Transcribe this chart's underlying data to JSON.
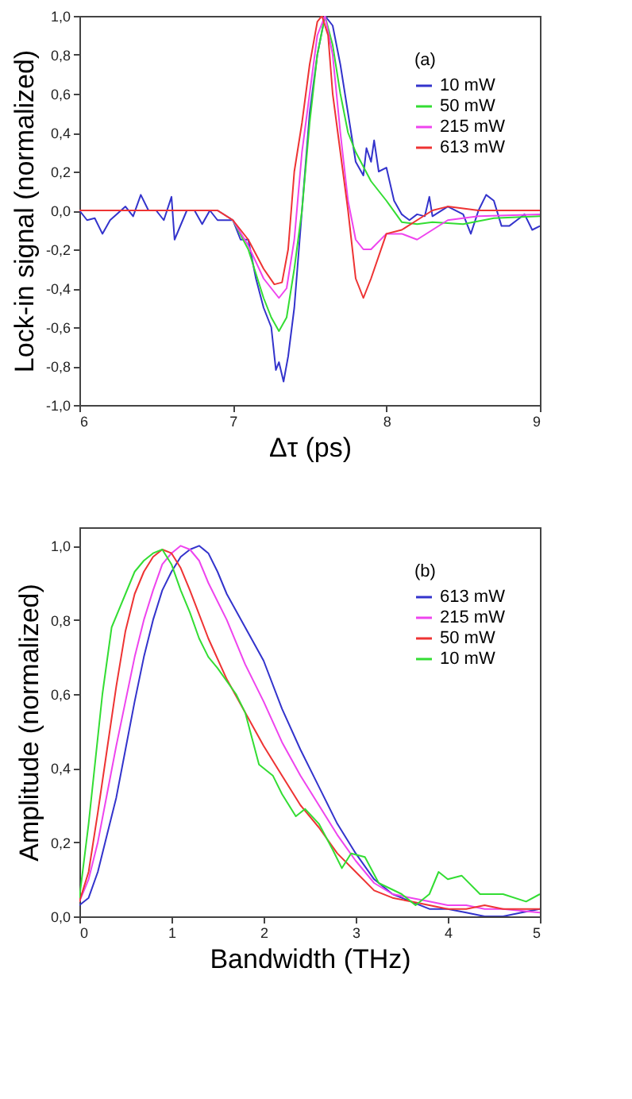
{
  "chart_data": [
    {
      "type": "line",
      "xlabel": "Δτ (ps)",
      "ylabel": "Lock-in signal (normalized)",
      "legend_title": "(a)",
      "legend": "top right",
      "grid": false,
      "line_style": "solid",
      "xlim": [
        6,
        9
      ],
      "ylim": [
        -1,
        1
      ],
      "xticks": [
        6,
        7,
        8,
        9
      ],
      "yticks": [
        {
          "value": -1,
          "label": "-1,0"
        },
        {
          "value": -0.8,
          "label": "-0,8"
        },
        {
          "value": -0.6,
          "label": "-0,6"
        },
        {
          "value": -0.4,
          "label": "-0,4"
        },
        {
          "value": -0.2,
          "label": "-0,2"
        },
        {
          "value": 0,
          "label": "0,0"
        },
        {
          "value": 0.2,
          "label": "0,2"
        },
        {
          "value": 0.4,
          "label": "0,4"
        },
        {
          "value": 0.6,
          "label": "0,6"
        },
        {
          "value": 0.8,
          "label": "0,8"
        },
        {
          "value": 1,
          "label": "1,0"
        }
      ],
      "series": [
        {
          "name": "10 mW",
          "color": "#3333cc",
          "x": [
            6.0,
            6.05,
            6.1,
            6.15,
            6.2,
            6.3,
            6.35,
            6.4,
            6.45,
            6.5,
            6.55,
            6.6,
            6.62,
            6.7,
            6.75,
            6.8,
            6.85,
            6.9,
            6.95,
            7.0,
            7.05,
            7.1,
            7.15,
            7.2,
            7.25,
            7.28,
            7.3,
            7.33,
            7.36,
            7.4,
            7.45,
            7.5,
            7.55,
            7.6,
            7.65,
            7.7,
            7.75,
            7.8,
            7.85,
            7.87,
            7.9,
            7.92,
            7.95,
            8.0,
            8.05,
            8.1,
            8.15,
            8.2,
            8.25,
            8.28,
            8.3,
            8.4,
            8.5,
            8.55,
            8.6,
            8.65,
            8.7,
            8.75,
            8.8,
            8.85,
            8.9,
            8.95,
            9.0
          ],
          "values": [
            0.0,
            -0.05,
            -0.04,
            -0.12,
            -0.05,
            0.02,
            -0.03,
            0.08,
            0.0,
            0.0,
            -0.05,
            0.07,
            -0.15,
            0.0,
            0.0,
            -0.07,
            0.0,
            -0.05,
            -0.05,
            -0.05,
            -0.15,
            -0.15,
            -0.35,
            -0.5,
            -0.6,
            -0.82,
            -0.78,
            -0.88,
            -0.75,
            -0.5,
            0.0,
            0.5,
            0.8,
            1.0,
            0.95,
            0.75,
            0.5,
            0.25,
            0.18,
            0.32,
            0.25,
            0.36,
            0.2,
            0.22,
            0.05,
            -0.02,
            -0.05,
            -0.02,
            -0.03,
            0.07,
            -0.03,
            0.02,
            -0.02,
            -0.12,
            0.0,
            0.08,
            0.05,
            -0.08,
            -0.08,
            -0.05,
            -0.02,
            -0.1,
            -0.08
          ]
        },
        {
          "name": "50 mW",
          "color": "#33dd33",
          "x": [
            6.0,
            6.9,
            7.0,
            7.1,
            7.2,
            7.25,
            7.3,
            7.35,
            7.4,
            7.45,
            7.5,
            7.55,
            7.6,
            7.65,
            7.7,
            7.75,
            7.8,
            7.9,
            8.0,
            8.1,
            8.2,
            8.3,
            8.5,
            8.7,
            9.0
          ],
          "values": [
            0.0,
            0.0,
            -0.05,
            -0.2,
            -0.45,
            -0.55,
            -0.62,
            -0.55,
            -0.3,
            0.0,
            0.45,
            0.8,
            1.0,
            0.85,
            0.6,
            0.4,
            0.3,
            0.15,
            0.05,
            -0.06,
            -0.07,
            -0.06,
            -0.07,
            -0.04,
            -0.03
          ]
        },
        {
          "name": "215 mW",
          "color": "#ee44ee",
          "x": [
            6.0,
            6.9,
            7.0,
            7.1,
            7.2,
            7.3,
            7.35,
            7.4,
            7.45,
            7.5,
            7.55,
            7.6,
            7.65,
            7.7,
            7.75,
            7.8,
            7.85,
            7.9,
            8.0,
            8.1,
            8.2,
            8.3,
            8.4,
            8.6,
            9.0
          ],
          "values": [
            0.0,
            0.0,
            -0.05,
            -0.18,
            -0.35,
            -0.45,
            -0.4,
            -0.15,
            0.3,
            0.6,
            0.9,
            1.0,
            0.8,
            0.4,
            0.05,
            -0.15,
            -0.2,
            -0.2,
            -0.12,
            -0.12,
            -0.15,
            -0.1,
            -0.05,
            -0.03,
            -0.02
          ]
        },
        {
          "name": "613 mW",
          "color": "#ee3333",
          "x": [
            6.0,
            6.9,
            7.0,
            7.1,
            7.2,
            7.27,
            7.32,
            7.36,
            7.4,
            7.45,
            7.5,
            7.55,
            7.58,
            7.62,
            7.65,
            7.7,
            7.75,
            7.8,
            7.85,
            7.9,
            8.0,
            8.1,
            8.2,
            8.3,
            8.4,
            8.6,
            9.0
          ],
          "values": [
            0.0,
            0.0,
            -0.05,
            -0.15,
            -0.3,
            -0.38,
            -0.37,
            -0.2,
            0.2,
            0.45,
            0.75,
            0.97,
            1.0,
            0.9,
            0.6,
            0.3,
            0.0,
            -0.35,
            -0.45,
            -0.35,
            -0.12,
            -0.1,
            -0.05,
            0.0,
            0.02,
            0.0,
            0.0
          ]
        }
      ]
    },
    {
      "type": "line",
      "xlabel": "Bandwidth (THz)",
      "ylabel": "Amplitude (normalized)",
      "legend_title": "(b)",
      "legend": "top right",
      "grid": false,
      "line_style": "solid",
      "xlim": [
        0,
        5
      ],
      "ylim": [
        0,
        1.05
      ],
      "xticks": [
        0,
        1,
        2,
        3,
        4,
        5
      ],
      "yticks": [
        {
          "value": 0,
          "label": "0,0"
        },
        {
          "value": 0.2,
          "label": "0,2"
        },
        {
          "value": 0.4,
          "label": "0,4"
        },
        {
          "value": 0.6,
          "label": "0,6"
        },
        {
          "value": 0.8,
          "label": "0,8"
        },
        {
          "value": 1,
          "label": "1,0"
        }
      ],
      "series": [
        {
          "name": "613 mW",
          "color": "#3333cc",
          "x": [
            0,
            0.1,
            0.2,
            0.3,
            0.4,
            0.5,
            0.6,
            0.7,
            0.8,
            0.9,
            1.0,
            1.1,
            1.2,
            1.3,
            1.4,
            1.5,
            1.6,
            1.8,
            2.0,
            2.2,
            2.4,
            2.6,
            2.8,
            3.0,
            3.2,
            3.4,
            3.6,
            3.8,
            4.0,
            4.2,
            4.4,
            4.6,
            4.8,
            5.0
          ],
          "values": [
            0.03,
            0.05,
            0.12,
            0.22,
            0.32,
            0.45,
            0.58,
            0.7,
            0.8,
            0.88,
            0.93,
            0.97,
            0.99,
            1.0,
            0.98,
            0.93,
            0.87,
            0.78,
            0.69,
            0.56,
            0.45,
            0.35,
            0.25,
            0.17,
            0.1,
            0.06,
            0.04,
            0.02,
            0.02,
            0.01,
            0.0,
            0.0,
            0.01,
            0.02
          ]
        },
        {
          "name": "215 mW",
          "color": "#ee44ee",
          "x": [
            0,
            0.1,
            0.2,
            0.3,
            0.4,
            0.5,
            0.6,
            0.7,
            0.8,
            0.9,
            1.0,
            1.1,
            1.2,
            1.3,
            1.4,
            1.6,
            1.8,
            2.0,
            2.2,
            2.4,
            2.6,
            2.8,
            3.0,
            3.2,
            3.4,
            3.6,
            3.8,
            4.0,
            4.2,
            4.4,
            4.6,
            5.0
          ],
          "values": [
            0.04,
            0.1,
            0.2,
            0.33,
            0.46,
            0.58,
            0.7,
            0.8,
            0.88,
            0.95,
            0.98,
            1.0,
            0.99,
            0.96,
            0.9,
            0.8,
            0.68,
            0.58,
            0.47,
            0.38,
            0.3,
            0.22,
            0.15,
            0.09,
            0.06,
            0.05,
            0.04,
            0.03,
            0.03,
            0.02,
            0.02,
            0.01
          ]
        },
        {
          "name": "50 mW",
          "color": "#ee3333",
          "x": [
            0,
            0.1,
            0.2,
            0.3,
            0.4,
            0.5,
            0.6,
            0.7,
            0.8,
            0.9,
            1.0,
            1.1,
            1.2,
            1.4,
            1.6,
            1.8,
            2.0,
            2.2,
            2.4,
            2.6,
            2.8,
            3.0,
            3.2,
            3.4,
            3.6,
            3.8,
            4.0,
            4.2,
            4.4,
            4.6,
            4.8,
            5.0
          ],
          "values": [
            0.04,
            0.12,
            0.28,
            0.45,
            0.62,
            0.77,
            0.87,
            0.93,
            0.97,
            0.99,
            0.98,
            0.94,
            0.88,
            0.75,
            0.64,
            0.55,
            0.46,
            0.38,
            0.3,
            0.24,
            0.17,
            0.12,
            0.07,
            0.05,
            0.04,
            0.03,
            0.02,
            0.02,
            0.03,
            0.02,
            0.02,
            0.02
          ]
        },
        {
          "name": "10 mW",
          "color": "#33dd33",
          "x": [
            0,
            0.1,
            0.25,
            0.35,
            0.5,
            0.6,
            0.7,
            0.8,
            0.9,
            1.0,
            1.1,
            1.2,
            1.3,
            1.4,
            1.5,
            1.7,
            1.8,
            1.95,
            2.1,
            2.2,
            2.35,
            2.45,
            2.6,
            2.75,
            2.85,
            2.95,
            3.1,
            3.25,
            3.5,
            3.65,
            3.8,
            3.9,
            4.0,
            4.15,
            4.35,
            4.6,
            4.85,
            5.0
          ],
          "values": [
            0.05,
            0.25,
            0.6,
            0.78,
            0.87,
            0.93,
            0.96,
            0.98,
            0.99,
            0.95,
            0.88,
            0.82,
            0.75,
            0.7,
            0.67,
            0.6,
            0.55,
            0.41,
            0.38,
            0.33,
            0.27,
            0.29,
            0.25,
            0.18,
            0.13,
            0.17,
            0.16,
            0.09,
            0.06,
            0.03,
            0.06,
            0.12,
            0.1,
            0.11,
            0.06,
            0.06,
            0.04,
            0.06
          ]
        }
      ]
    }
  ]
}
